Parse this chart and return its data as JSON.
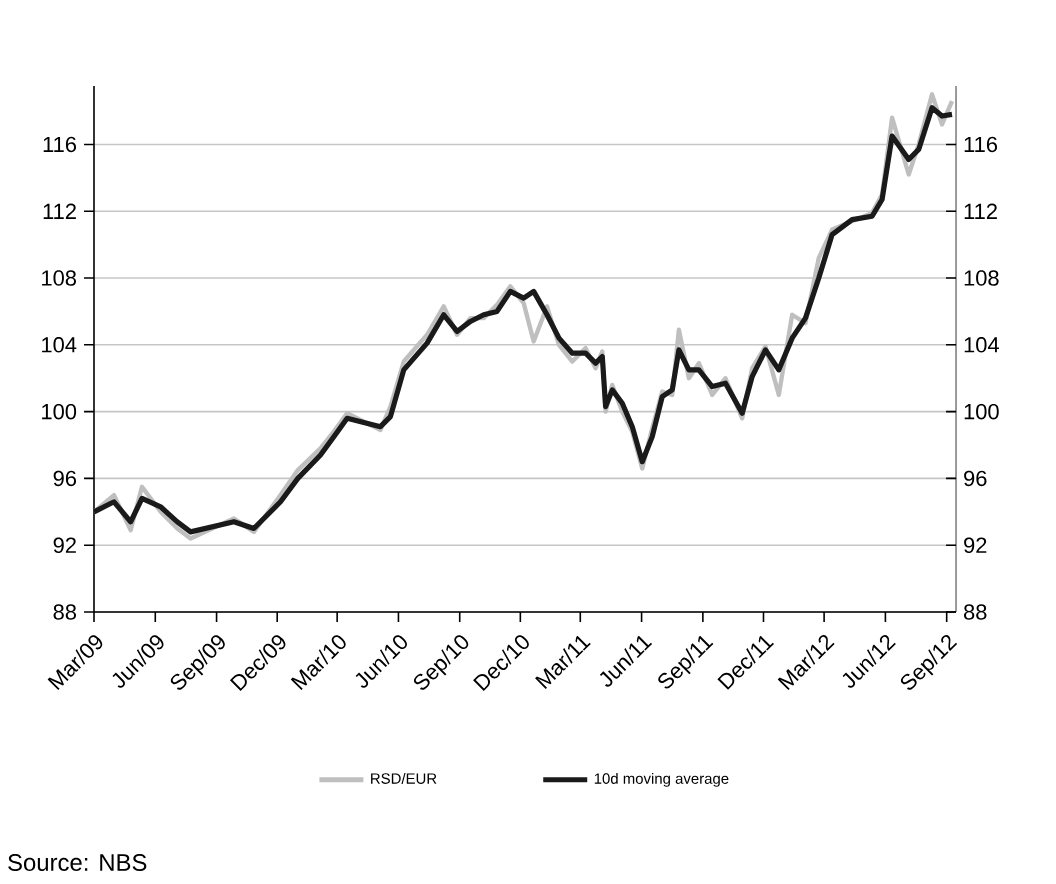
{
  "chart_data": {
    "type": "line",
    "x": [
      "2009-03-01",
      "2009-03-31",
      "2009-04-25",
      "2009-05-12",
      "2009-06-09",
      "2009-07-04",
      "2009-07-24",
      "2009-09-27",
      "2009-10-27",
      "2009-12-06",
      "2010-01-01",
      "2010-02-04",
      "2010-02-24",
      "2010-03-16",
      "2010-05-05",
      "2010-05-20",
      "2010-06-09",
      "2010-07-14",
      "2010-08-08",
      "2010-08-28",
      "2010-09-17",
      "2010-10-07",
      "2010-10-27",
      "2010-11-16",
      "2010-12-06",
      "2010-12-21",
      "2011-01-10",
      "2011-01-28",
      "2011-02-17",
      "2011-03-09",
      "2011-03-24",
      "2011-04-03",
      "2011-04-08",
      "2011-04-18",
      "2011-05-03",
      "2011-05-18",
      "2011-06-02",
      "2011-06-17",
      "2011-07-02",
      "2011-07-17",
      "2011-07-27",
      "2011-08-11",
      "2011-08-26",
      "2011-09-15",
      "2011-10-05",
      "2011-10-30",
      "2011-11-14",
      "2011-12-04",
      "2011-12-24",
      "2012-01-13",
      "2012-02-02",
      "2012-02-22",
      "2012-03-13",
      "2012-04-12",
      "2012-05-12",
      "2012-05-27",
      "2012-06-11",
      "2012-07-06",
      "2012-07-21",
      "2012-08-10",
      "2012-08-25",
      "2012-09-09"
    ],
    "series": [
      {
        "name": "RSD/EUR",
        "color": "#bfbfbf",
        "values": [
          94.0,
          95.0,
          92.9,
          95.5,
          94.0,
          93.0,
          92.4,
          93.6,
          92.8,
          95.0,
          96.5,
          97.8,
          98.8,
          99.9,
          98.9,
          100.3,
          103.0,
          104.6,
          106.3,
          104.6,
          105.6,
          105.6,
          106.4,
          107.5,
          106.5,
          104.2,
          106.3,
          104.0,
          103.0,
          103.8,
          102.6,
          103.6,
          100.0,
          101.6,
          100.0,
          98.8,
          96.6,
          99.0,
          101.2,
          101.0,
          104.9,
          102.0,
          102.9,
          101.0,
          102.0,
          99.6,
          102.6,
          103.9,
          101.0,
          105.8,
          105.3,
          109.2,
          110.9,
          111.4,
          111.9,
          113.0,
          117.6,
          114.2,
          116.0,
          119.0,
          117.2,
          118.6
        ]
      },
      {
        "name": "10d moving average",
        "color": "#1a1a1a",
        "values": [
          94.0,
          94.6,
          93.4,
          94.8,
          94.3,
          93.4,
          92.8,
          93.4,
          93.0,
          94.6,
          96.0,
          97.4,
          98.5,
          99.6,
          99.1,
          99.7,
          102.5,
          104.1,
          105.8,
          104.8,
          105.4,
          105.8,
          106.0,
          107.2,
          106.8,
          107.2,
          105.8,
          104.4,
          103.5,
          103.5,
          102.9,
          103.3,
          100.3,
          101.3,
          100.5,
          99.1,
          97.0,
          98.5,
          100.9,
          101.3,
          103.7,
          102.5,
          102.5,
          101.5,
          101.7,
          99.9,
          102.1,
          103.7,
          102.5,
          104.4,
          105.6,
          108.0,
          110.6,
          111.5,
          111.7,
          112.7,
          116.5,
          115.1,
          115.7,
          118.2,
          117.7,
          117.8
        ]
      }
    ],
    "xlim": [
      "2009-03-01",
      "2012-09-15"
    ],
    "xticks": [
      {
        "value": "2009-03-01",
        "label": "Mar/09"
      },
      {
        "value": "2009-06-01",
        "label": "Jun/09"
      },
      {
        "value": "2009-09-01",
        "label": "Sep/09"
      },
      {
        "value": "2009-12-01",
        "label": "Dec/09"
      },
      {
        "value": "2010-03-01",
        "label": "Mar/10"
      },
      {
        "value": "2010-06-01",
        "label": "Jun/10"
      },
      {
        "value": "2010-09-01",
        "label": "Sep/10"
      },
      {
        "value": "2010-12-01",
        "label": "Dec/10"
      },
      {
        "value": "2011-03-01",
        "label": "Mar/11"
      },
      {
        "value": "2011-06-01",
        "label": "Jun/11"
      },
      {
        "value": "2011-09-01",
        "label": "Sep/11"
      },
      {
        "value": "2011-12-01",
        "label": "Dec/11"
      },
      {
        "value": "2012-03-01",
        "label": "Mar/12"
      },
      {
        "value": "2012-06-01",
        "label": "Jun/12"
      },
      {
        "value": "2012-09-01",
        "label": "Sep/12"
      }
    ],
    "ylim": [
      88,
      119.5
    ],
    "yticks": [
      88,
      92,
      96,
      100,
      104,
      108,
      112,
      116
    ],
    "y2lim": [
      88,
      119.5
    ],
    "y2ticks": [
      88,
      92,
      96,
      100,
      104,
      108,
      112,
      116
    ],
    "grid": "y",
    "legend": "bottom",
    "annotations": [
      "Source: NBS"
    ]
  }
}
